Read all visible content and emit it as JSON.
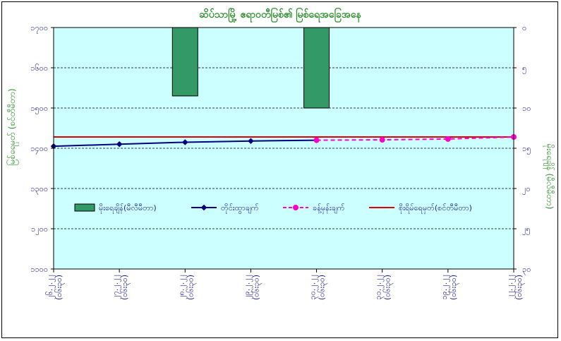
{
  "chart_data": {
    "type": "bar+line",
    "title": "ဆိပ်သာမြို့ ဧရာဝတီမြစ်၏ မြစ်ရေအခြေအနေ",
    "ylabel_left": "မြစ်ရေမှတ် (စင်တီမီတာ)",
    "ylabel_right": "မိုးရေချိန် (မီလီမီတာ)",
    "yticks_left": [
      "၁၇၀၀",
      "၁၆၀၀",
      "၁၅၀၀",
      "၁၄၀၀",
      "၁၃၀၀",
      "၁၂၀၀",
      "၁၁၀၀"
    ],
    "yticks_right": [
      "၀",
      "၅",
      "၁၀",
      "၁၅",
      "၂၀",
      "၂၅",
      "၃၀"
    ],
    "ylim_left": [
      1100,
      1700
    ],
    "ylim_right_inverted": [
      0,
      30
    ],
    "categories": [
      [
        "၂၆.၂.၂၂",
        "(၀၆း၃၀)"
      ],
      [
        "၂၇.၂.၂၂",
        "(၀၆း၃၀)"
      ],
      [
        "၂၈.၂.၂၂",
        "(၀၆း၃၀)"
      ],
      [
        "၂၉.၂.၂၂",
        "(၀၆း၃၀)"
      ],
      [
        "၃၀.၂.၂၂",
        "(၀၆း၃၀)"
      ],
      [
        "၃၁.၂.၂၂",
        "(၀၆း၃၀)"
      ],
      [
        "၁၉.၂.၂၂",
        "(၀၆း၃၀)"
      ],
      [
        "၂၂.၂.၂၂",
        "(၀၆း၃၀)"
      ]
    ],
    "rainfall": [
      0,
      0,
      8.5,
      0,
      10,
      0,
      0,
      0
    ],
    "observed": [
      1405,
      1410,
      1415,
      1418,
      1420,
      null,
      null,
      null
    ],
    "forecast": [
      null,
      null,
      null,
      null,
      1420,
      1421,
      1423,
      1428
    ],
    "danger_level": 1428,
    "legend": [
      {
        "label": "မိုးရေချိန်(မီလီမီတာ)",
        "color": "#339966",
        "kind": "bar"
      },
      {
        "label": "တိုင်းထွာချက်",
        "color": "#000080",
        "kind": "line"
      },
      {
        "label": "ခန့်မှန်းချက်",
        "color": "#ff00cc",
        "kind": "dashed"
      },
      {
        "label": "စိုးရိမ်ရေမှတ်(စင်တီမီတာ)",
        "color": "#e00000",
        "kind": "line"
      }
    ],
    "colors": {
      "plot_bg": "#ccffff",
      "rain": "#339966",
      "observed": "#000080",
      "forecast": "#ff00cc",
      "danger": "#e00000"
    },
    "grid": true,
    "legend_position": "inside-middle"
  }
}
